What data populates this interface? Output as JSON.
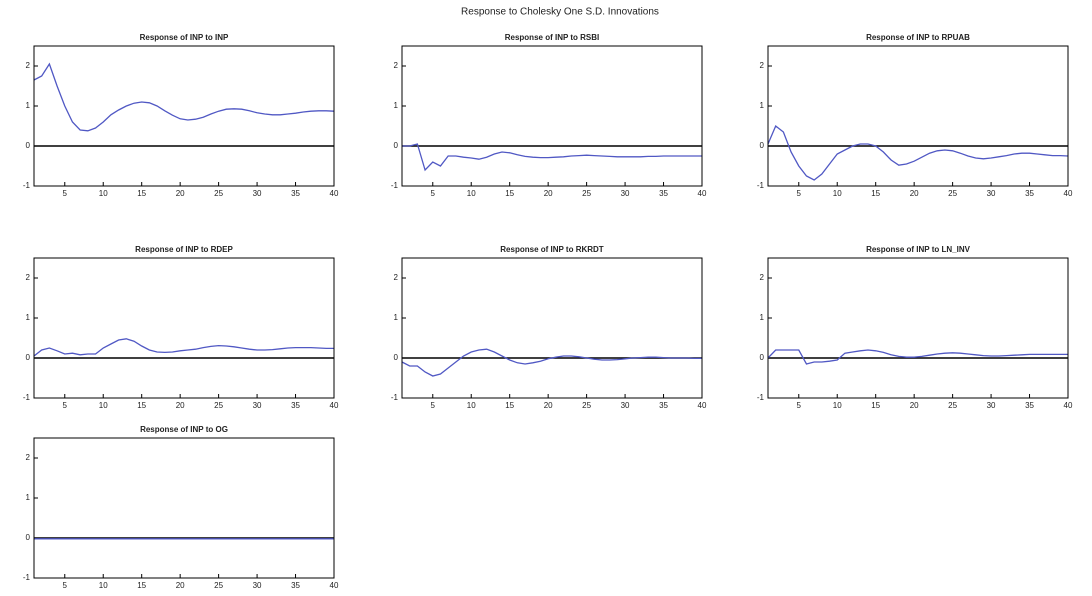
{
  "title": "Response to Cholesky One S.D. Innovations",
  "chart_data": [
    {
      "type": "line",
      "title": "Response of INP to INP",
      "xlim": [
        1,
        40
      ],
      "ylim": [
        -1,
        2.5
      ],
      "xticks": [
        5,
        10,
        15,
        20,
        25,
        30,
        35,
        40
      ],
      "yticks": [
        -1,
        0,
        1,
        2
      ],
      "zero_line": true,
      "x": [
        1,
        2,
        3,
        4,
        5,
        6,
        7,
        8,
        9,
        10,
        11,
        12,
        13,
        14,
        15,
        16,
        17,
        18,
        19,
        20,
        21,
        22,
        23,
        24,
        25,
        26,
        27,
        28,
        29,
        30,
        31,
        32,
        33,
        34,
        35,
        36,
        37,
        38,
        39,
        40
      ],
      "series": [
        {
          "color": "#5058c4",
          "values": [
            1.65,
            1.75,
            2.05,
            1.5,
            1.0,
            0.6,
            0.4,
            0.38,
            0.45,
            0.6,
            0.78,
            0.9,
            1.0,
            1.07,
            1.1,
            1.08,
            1.0,
            0.88,
            0.77,
            0.68,
            0.65,
            0.67,
            0.72,
            0.8,
            0.87,
            0.92,
            0.93,
            0.92,
            0.88,
            0.83,
            0.8,
            0.78,
            0.78,
            0.8,
            0.82,
            0.85,
            0.87,
            0.88,
            0.88,
            0.87
          ]
        }
      ]
    },
    {
      "type": "line",
      "title": "Response of INP to RSBI",
      "xlim": [
        1,
        40
      ],
      "ylim": [
        -1,
        2.5
      ],
      "xticks": [
        5,
        10,
        15,
        20,
        25,
        30,
        35,
        40
      ],
      "yticks": [
        -1,
        0,
        1,
        2
      ],
      "zero_line": true,
      "x": [
        1,
        2,
        3,
        4,
        5,
        6,
        7,
        8,
        9,
        10,
        11,
        12,
        13,
        14,
        15,
        16,
        17,
        18,
        19,
        20,
        21,
        22,
        23,
        24,
        25,
        26,
        27,
        28,
        29,
        30,
        31,
        32,
        33,
        34,
        35,
        36,
        37,
        38,
        39,
        40
      ],
      "series": [
        {
          "color": "#5058c4",
          "values": [
            0,
            0,
            0.05,
            -0.6,
            -0.4,
            -0.5,
            -0.25,
            -0.25,
            -0.28,
            -0.3,
            -0.33,
            -0.28,
            -0.2,
            -0.15,
            -0.17,
            -0.22,
            -0.26,
            -0.28,
            -0.29,
            -0.29,
            -0.28,
            -0.27,
            -0.25,
            -0.24,
            -0.23,
            -0.24,
            -0.25,
            -0.26,
            -0.27,
            -0.27,
            -0.27,
            -0.27,
            -0.26,
            -0.26,
            -0.25,
            -0.25,
            -0.25,
            -0.25,
            -0.25,
            -0.25
          ]
        }
      ]
    },
    {
      "type": "line",
      "title": "Response of INP to RPUAB",
      "xlim": [
        1,
        40
      ],
      "ylim": [
        -1,
        2.5
      ],
      "xticks": [
        5,
        10,
        15,
        20,
        25,
        30,
        35,
        40
      ],
      "yticks": [
        -1,
        0,
        1,
        2
      ],
      "zero_line": true,
      "x": [
        1,
        2,
        3,
        4,
        5,
        6,
        7,
        8,
        9,
        10,
        11,
        12,
        13,
        14,
        15,
        16,
        17,
        18,
        19,
        20,
        21,
        22,
        23,
        24,
        25,
        26,
        27,
        28,
        29,
        30,
        31,
        32,
        33,
        34,
        35,
        36,
        37,
        38,
        39,
        40
      ],
      "series": [
        {
          "color": "#5058c4",
          "values": [
            0.05,
            0.5,
            0.35,
            -0.15,
            -0.5,
            -0.75,
            -0.85,
            -0.7,
            -0.45,
            -0.2,
            -0.1,
            0.0,
            0.05,
            0.05,
            0.0,
            -0.15,
            -0.35,
            -0.48,
            -0.45,
            -0.38,
            -0.28,
            -0.18,
            -0.12,
            -0.1,
            -0.12,
            -0.18,
            -0.25,
            -0.3,
            -0.32,
            -0.3,
            -0.27,
            -0.24,
            -0.2,
            -0.18,
            -0.18,
            -0.2,
            -0.22,
            -0.24,
            -0.24,
            -0.25
          ]
        }
      ]
    },
    {
      "type": "line",
      "title": "Response of INP to RDEP",
      "xlim": [
        1,
        40
      ],
      "ylim": [
        -1,
        2.5
      ],
      "xticks": [
        5,
        10,
        15,
        20,
        25,
        30,
        35,
        40
      ],
      "yticks": [
        -1,
        0,
        1,
        2
      ],
      "zero_line": true,
      "x": [
        1,
        2,
        3,
        4,
        5,
        6,
        7,
        8,
        9,
        10,
        11,
        12,
        13,
        14,
        15,
        16,
        17,
        18,
        19,
        20,
        21,
        22,
        23,
        24,
        25,
        26,
        27,
        28,
        29,
        30,
        31,
        32,
        33,
        34,
        35,
        36,
        37,
        38,
        39,
        40
      ],
      "series": [
        {
          "color": "#5058c4",
          "values": [
            0.05,
            0.2,
            0.25,
            0.18,
            0.1,
            0.12,
            0.08,
            0.1,
            0.1,
            0.25,
            0.35,
            0.45,
            0.48,
            0.42,
            0.3,
            0.2,
            0.15,
            0.14,
            0.15,
            0.18,
            0.2,
            0.22,
            0.26,
            0.29,
            0.31,
            0.3,
            0.28,
            0.25,
            0.22,
            0.2,
            0.2,
            0.21,
            0.23,
            0.25,
            0.26,
            0.26,
            0.26,
            0.25,
            0.24,
            0.24
          ]
        }
      ]
    },
    {
      "type": "line",
      "title": "Response of INP to RKRDT",
      "xlim": [
        1,
        40
      ],
      "ylim": [
        -1,
        2.5
      ],
      "xticks": [
        5,
        10,
        15,
        20,
        25,
        30,
        35,
        40
      ],
      "yticks": [
        -1,
        0,
        1,
        2
      ],
      "zero_line": true,
      "x": [
        1,
        2,
        3,
        4,
        5,
        6,
        7,
        8,
        9,
        10,
        11,
        12,
        13,
        14,
        15,
        16,
        17,
        18,
        19,
        20,
        21,
        22,
        23,
        24,
        25,
        26,
        27,
        28,
        29,
        30,
        31,
        32,
        33,
        34,
        35,
        36,
        37,
        38,
        39,
        40
      ],
      "series": [
        {
          "color": "#5058c4",
          "values": [
            -0.1,
            -0.2,
            -0.2,
            -0.35,
            -0.45,
            -0.4,
            -0.25,
            -0.1,
            0.05,
            0.15,
            0.2,
            0.22,
            0.15,
            0.05,
            -0.05,
            -0.12,
            -0.15,
            -0.12,
            -0.08,
            -0.02,
            0.02,
            0.05,
            0.05,
            0.03,
            0.0,
            -0.03,
            -0.05,
            -0.05,
            -0.04,
            -0.02,
            0.0,
            0.01,
            0.02,
            0.02,
            0.01,
            0.0,
            0.0,
            0.0,
            -0.01,
            -0.01
          ]
        }
      ]
    },
    {
      "type": "line",
      "title": "Response of INP to LN_INV",
      "xlim": [
        1,
        40
      ],
      "ylim": [
        -1,
        2.5
      ],
      "xticks": [
        5,
        10,
        15,
        20,
        25,
        30,
        35,
        40
      ],
      "yticks": [
        -1,
        0,
        1,
        2
      ],
      "zero_line": true,
      "x": [
        1,
        2,
        3,
        4,
        5,
        6,
        7,
        8,
        9,
        10,
        11,
        12,
        13,
        14,
        15,
        16,
        17,
        18,
        19,
        20,
        21,
        22,
        23,
        24,
        25,
        26,
        27,
        28,
        29,
        30,
        31,
        32,
        33,
        34,
        35,
        36,
        37,
        38,
        39,
        40
      ],
      "series": [
        {
          "color": "#5058c4",
          "values": [
            0.0,
            0.2,
            0.2,
            0.2,
            0.2,
            -0.15,
            -0.1,
            -0.1,
            -0.08,
            -0.05,
            0.12,
            0.15,
            0.18,
            0.2,
            0.18,
            0.14,
            0.08,
            0.04,
            0.02,
            0.02,
            0.04,
            0.07,
            0.1,
            0.12,
            0.13,
            0.12,
            0.1,
            0.08,
            0.06,
            0.05,
            0.05,
            0.06,
            0.07,
            0.08,
            0.09,
            0.09,
            0.09,
            0.09,
            0.09,
            0.09
          ]
        }
      ]
    },
    {
      "type": "line",
      "title": "Response of INP to OG",
      "xlim": [
        1,
        40
      ],
      "ylim": [
        -1,
        2.5
      ],
      "xticks": [
        5,
        10,
        15,
        20,
        25,
        30,
        35,
        40
      ],
      "yticks": [
        -1,
        0,
        1,
        2
      ],
      "zero_line": true,
      "x": [
        1,
        2,
        3,
        4,
        5,
        6,
        7,
        8,
        9,
        10,
        11,
        12,
        13,
        14,
        15,
        16,
        17,
        18,
        19,
        20,
        21,
        22,
        23,
        24,
        25,
        26,
        27,
        28,
        29,
        30,
        31,
        32,
        33,
        34,
        35,
        36,
        37,
        38,
        39,
        40
      ],
      "series": [
        {
          "color": "#5058c4",
          "values": [
            -0.02,
            -0.02,
            -0.02,
            -0.02,
            -0.02,
            -0.02,
            -0.02,
            -0.02,
            -0.02,
            -0.02,
            -0.02,
            -0.02,
            -0.02,
            -0.02,
            -0.02,
            -0.02,
            -0.02,
            -0.02,
            -0.02,
            -0.02,
            -0.02,
            -0.02,
            -0.02,
            -0.02,
            -0.02,
            -0.02,
            -0.02,
            -0.02,
            -0.02,
            -0.02,
            -0.02,
            -0.02,
            -0.02,
            -0.02,
            -0.02,
            -0.02,
            -0.02,
            -0.02,
            -0.02,
            -0.02
          ]
        }
      ]
    }
  ]
}
